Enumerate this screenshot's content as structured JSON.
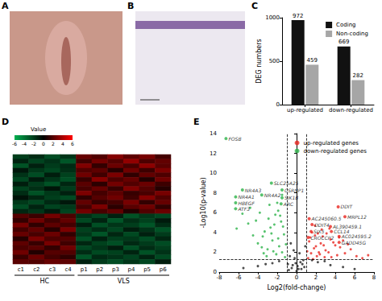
{
  "chart_data": [
    {
      "type": "image",
      "title": "A"
    },
    {
      "type": "image",
      "title": "B"
    },
    {
      "type": "bar",
      "title": "C",
      "categories": [
        "up-regulated",
        "down-regulated"
      ],
      "series": [
        {
          "name": "Coding",
          "color": "#111111",
          "values": [
            972,
            669
          ]
        },
        {
          "name": "Non-coding",
          "color": "#a6a6a6",
          "values": [
            459,
            282
          ]
        }
      ],
      "y_label": "DEG numbers",
      "ylim": [
        0,
        1000
      ],
      "yticks": [
        0,
        500,
        1000
      ],
      "grid": false,
      "legend": "upper right",
      "data_labels": true
    },
    {
      "type": "heatmap",
      "title": "D",
      "categories": [
        "c1",
        "c2",
        "c3",
        "c4",
        "p1",
        "p2",
        "p3",
        "p4",
        "p5",
        "p6"
      ],
      "groups": [
        {
          "label": "HC",
          "from": "c1",
          "to": "c4"
        },
        {
          "label": "VLS",
          "from": "p1",
          "to": "p6"
        }
      ],
      "cells": [
        [
          -2.1,
          -1.5,
          -2.6,
          -1.8,
          2.4,
          1.9,
          3.1,
          2.2,
          2.8,
          1.6
        ],
        [
          -1.2,
          -2.3,
          -1.7,
          -2.9,
          1.5,
          2.7,
          2.0,
          3.4,
          1.8,
          2.3
        ],
        [
          -2.8,
          -1.1,
          -2.0,
          -1.4,
          3.0,
          1.2,
          2.5,
          1.7,
          3.3,
          2.1
        ],
        [
          -0.8,
          -1.9,
          -2.4,
          -1.6,
          1.9,
          2.2,
          0.9,
          2.6,
          1.4,
          2.9
        ],
        [
          -1.7,
          -2.6,
          -1.0,
          -2.2,
          2.6,
          1.5,
          2.9,
          1.1,
          2.3,
          1.8
        ],
        [
          -2.4,
          -0.9,
          -1.8,
          -2.7,
          1.3,
          3.2,
          1.8,
          2.4,
          0.8,
          2.6
        ],
        [
          -1.0,
          -2.0,
          -2.8,
          -1.3,
          2.1,
          1.0,
          2.7,
          1.9,
          2.5,
          1.4
        ],
        [
          -2.2,
          -1.6,
          -0.7,
          -2.0,
          1.7,
          2.4,
          1.3,
          3.0,
          2.0,
          0.9
        ],
        [
          -1.5,
          -2.8,
          -1.9,
          -1.1,
          2.9,
          1.6,
          2.2,
          1.3,
          1.7,
          2.8
        ],
        [
          -0.6,
          -1.3,
          -2.1,
          -2.5,
          1.1,
          2.0,
          2.6,
          1.5,
          3.1,
          1.9
        ],
        [
          -1.9,
          -2.4,
          -1.4,
          -0.8,
          2.3,
          1.3,
          1.6,
          2.8,
          1.2,
          2.4
        ],
        [
          -2.6,
          -1.2,
          -2.3,
          -1.9,
          1.6,
          2.9,
          1.0,
          2.1,
          2.6,
          1.2
        ],
        [
          -1.3,
          -1.8,
          -0.9,
          -2.3,
          2.7,
          1.7,
          2.3,
          0.8,
          1.9,
          2.5
        ],
        [
          2.0,
          1.4,
          2.7,
          1.8,
          -1.6,
          -2.3,
          -1.1,
          -2.8,
          -1.9,
          -2.4
        ],
        [
          1.2,
          2.6,
          1.5,
          2.3,
          -2.5,
          -1.2,
          -2.9,
          -1.6,
          -2.2,
          -0.9
        ],
        [
          2.8,
          1.1,
          2.2,
          1.6,
          -1.0,
          -2.7,
          -1.8,
          -2.1,
          -2.9,
          -1.5
        ],
        [
          1.6,
          2.3,
          0.9,
          2.9,
          -2.2,
          -1.5,
          -2.4,
          -1.0,
          -1.7,
          -2.8
        ],
        [
          2.4,
          1.7,
          2.5,
          1.2,
          -1.8,
          -2.9,
          -1.3,
          -2.5,
          -1.1,
          -2.0
        ],
        [
          0.9,
          2.9,
          1.8,
          2.0,
          -2.7,
          -1.1,
          -2.1,
          -1.9,
          -2.6,
          -1.3
        ],
        [
          2.2,
          1.3,
          2.8,
          1.5,
          -1.3,
          -2.2,
          -2.7,
          -1.4,
          -2.0,
          -2.6
        ],
        [
          1.8,
          2.1,
          1.2,
          2.6,
          -2.4,
          -1.8,
          -1.0,
          -2.7,
          -1.5,
          -2.1
        ],
        [
          2.6,
          0.8,
          2.0,
          1.9,
          -1.5,
          -2.5,
          -2.2,
          -1.2,
          -2.8,
          -1.7
        ],
        [
          1.4,
          2.5,
          1.6,
          1.1,
          -2.9,
          -1.4,
          -1.7,
          -2.3,
          -1.2,
          -2.5
        ],
        [
          2.1,
          1.9,
          2.4,
          2.2,
          -1.1,
          -2.0,
          -2.6,
          -1.8,
          -2.4,
          -1.0
        ]
      ],
      "colorbar": {
        "title": "Value",
        "range": [
          -6,
          6
        ],
        "ticks": [
          -6,
          -4,
          -2,
          0,
          2,
          4,
          6
        ],
        "colors": [
          "#00b050",
          "#000000",
          "#ff0000"
        ]
      },
      "tick_labels": "x",
      "grid": false
    },
    {
      "type": "scatter",
      "title": "E",
      "x_label": "Log2(fold-change)",
      "y_label": "-Log10(p-value)",
      "xlim": [
        -8,
        8
      ],
      "xticks": [
        -8,
        -6,
        -4,
        -2,
        0,
        2,
        4,
        6,
        8
      ],
      "ylim": [
        0,
        14
      ],
      "yticks": [
        0,
        2,
        4,
        6,
        8,
        10,
        12,
        14
      ],
      "grid": false,
      "legend": "upper right",
      "series": [
        {
          "name": "up-regulated genes",
          "color": "#e8251f",
          "x": [
            1.2,
            1.5,
            1.8,
            2.1,
            2.5,
            1.3,
            3.0,
            2.7,
            1.6,
            3.5,
            2.2,
            4.0,
            1.9,
            2.9,
            3.3,
            4.5,
            1.4,
            2.4,
            5.0,
            3.8,
            2.0,
            1.7,
            4.2,
            3.1,
            5.6,
            2.6,
            1.1,
            6.2,
            3.6,
            4.8,
            2.3,
            6.8,
            7.4,
            5.3,
            2.8,
            1.9,
            3.4,
            4.4
          ],
          "y": [
            1.4,
            1.9,
            2.4,
            1.6,
            2.9,
            3.1,
            2.2,
            3.6,
            4.0,
            3.3,
            3.9,
            2.7,
            4.7,
            1.5,
            2.0,
            2.5,
            3.5,
            1.8,
            1.9,
            3.0,
            2.6,
            1.3,
            1.7,
            3.9,
            2.3,
            4.3,
            2.1,
            1.6,
            1.5,
            3.2,
            2.0,
            1.4,
            1.7,
            2.8,
            2.7,
            3.7,
            4.4,
            3.5
          ]
        },
        {
          "name": "down-regulated genes",
          "color": "#2db34a",
          "x": [
            -1.2,
            -1.5,
            -1.8,
            -2.1,
            -2.5,
            -1.3,
            -3.0,
            -2.7,
            -1.6,
            -3.5,
            -2.2,
            -4.0,
            -1.9,
            -2.9,
            -3.3,
            -4.5,
            -1.4,
            -2.4,
            -5.0,
            -3.8,
            -2.0,
            -1.7,
            -4.2,
            -3.1,
            -5.6,
            -2.6,
            -1.1,
            -6.2,
            -3.6,
            -4.8,
            -2.3,
            -1.5,
            -2.8,
            -1.9,
            -3.4
          ],
          "y": [
            1.5,
            2.0,
            2.6,
            1.8,
            3.2,
            3.8,
            2.3,
            4.5,
            5.1,
            3.6,
            5.8,
            2.9,
            6.2,
            5.4,
            4.1,
            3.7,
            4.6,
            2.1,
            4.9,
            6.0,
            7.0,
            5.7,
            5.2,
            1.6,
            5.9,
            3.9,
            2.8,
            4.4,
            2.5,
            6.5,
            4.8,
            7.8,
            6.8,
            3.4,
            1.9
          ]
        },
        {
          "color": "#222222",
          "x": [
            -0.9,
            -0.7,
            -0.5,
            -0.3,
            -0.1,
            0.1,
            0.3,
            0.5,
            0.7,
            0.9,
            -0.8,
            -0.4,
            0.0,
            0.4,
            0.8,
            -0.6,
            -0.2,
            0.2,
            0.6,
            -2.5,
            -4.0,
            -1.8,
            -5.5,
            2.2,
            3.5,
            4.8,
            1.6,
            6.0,
            -3.2,
            2.9
          ],
          "y": [
            0.8,
            1.6,
            0.4,
            2.2,
            0.9,
            0.6,
            1.9,
            0.3,
            1.2,
            2.6,
            0.2,
            0.7,
            0.1,
            1.0,
            0.5,
            2.9,
            1.4,
            0.3,
            0.8,
            0.9,
            0.6,
            1.1,
            0.4,
            1.0,
            0.7,
            0.5,
            1.2,
            0.3,
            0.8,
            1.1
          ]
        }
      ],
      "cutoffs": {
        "x": [
          -1,
          1
        ],
        "y": 1.3
      },
      "annotations": [
        {
          "text": "FOSB",
          "x": -7.3,
          "y": 13.5
        },
        {
          "text": "SLC25A25",
          "x": -2.6,
          "y": 9.0
        },
        {
          "text": "NR4A3",
          "x": -5.6,
          "y": 8.3
        },
        {
          "text": "CSRNP1",
          "x": -1.5,
          "y": 8.3
        },
        {
          "text": "NR4A2",
          "x": -3.6,
          "y": 7.8
        },
        {
          "text": "NR4A1",
          "x": -6.3,
          "y": 7.6
        },
        {
          "text": "SIK1B",
          "x": -1.5,
          "y": 7.5
        },
        {
          "text": "HBEGF",
          "x": -6.3,
          "y": 7.0
        },
        {
          "text": "ARC",
          "x": -1.6,
          "y": 6.9
        },
        {
          "text": "ATF3",
          "x": -6.3,
          "y": 6.4
        },
        {
          "text": "DDIT",
          "x": 4.3,
          "y": 6.6
        },
        {
          "text": "MRPL12",
          "x": 5.0,
          "y": 5.6
        },
        {
          "text": "AC245060.5",
          "x": 1.3,
          "y": 5.4
        },
        {
          "text": "DDIT4",
          "x": 1.6,
          "y": 4.8
        },
        {
          "text": "AL390459.1",
          "x": 3.5,
          "y": 4.6
        },
        {
          "text": "SIX5",
          "x": 1.5,
          "y": 4.1
        },
        {
          "text": "CCL14",
          "x": 3.6,
          "y": 4.1
        },
        {
          "text": "AC024595.2",
          "x": 4.4,
          "y": 3.6
        },
        {
          "text": "CROCCP2",
          "x": 1.2,
          "y": 3.5
        },
        {
          "text": "GADD45G",
          "x": 4.4,
          "y": 3.0
        }
      ]
    }
  ]
}
